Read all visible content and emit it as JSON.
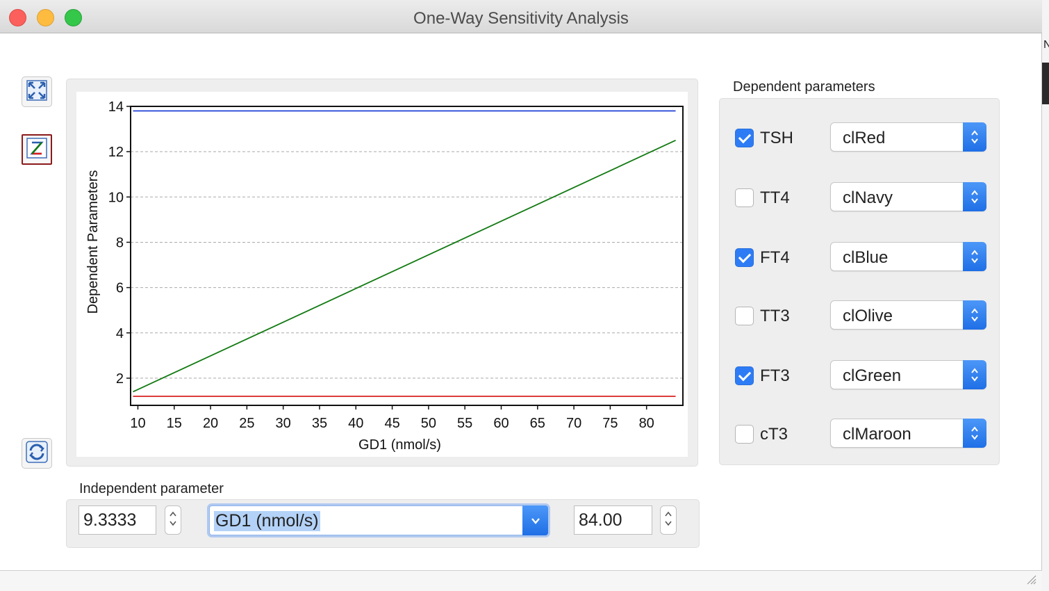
{
  "window": {
    "title": "One-Way Sensitivity Analysis"
  },
  "toolbar": {
    "buttons": [
      {
        "name": "fit-view",
        "icon": "expand-arrows-icon"
      },
      {
        "name": "zoom",
        "icon": "zoom-z-icon",
        "selected": true
      },
      {
        "name": "refresh",
        "icon": "refresh-icon"
      }
    ]
  },
  "chart_data": {
    "type": "line",
    "title": "",
    "xlabel": "GD1 (nmol/s)",
    "ylabel": "Dependent Parameters",
    "xlim": [
      9,
      85
    ],
    "ylim": [
      0.8,
      14
    ],
    "x_ticks": [
      10,
      15,
      20,
      25,
      30,
      35,
      40,
      45,
      50,
      55,
      60,
      65,
      70,
      75,
      80
    ],
    "y_ticks": [
      2,
      4,
      6,
      8,
      10,
      12,
      14
    ],
    "grid": "horizontal-dashed",
    "series": [
      {
        "color": "#1f3fd6",
        "x": [
          9.3333,
          84
        ],
        "y": [
          13.8,
          13.8
        ]
      },
      {
        "color": "#127a12",
        "x": [
          9.3333,
          84
        ],
        "y": [
          1.4,
          12.5
        ]
      },
      {
        "color": "#d92020",
        "x": [
          9.3333,
          84
        ],
        "y": [
          1.2,
          1.2
        ]
      }
    ]
  },
  "dependent": {
    "label": "Dependent parameters",
    "params": [
      {
        "name": "TSH",
        "checked": true,
        "color": "clRed"
      },
      {
        "name": "TT4",
        "checked": false,
        "color": "clNavy"
      },
      {
        "name": "FT4",
        "checked": true,
        "color": "clBlue"
      },
      {
        "name": "TT3",
        "checked": false,
        "color": "clOlive"
      },
      {
        "name": "FT3",
        "checked": true,
        "color": "clGreen"
      },
      {
        "name": "cT3",
        "checked": false,
        "color": "clMaroon"
      }
    ]
  },
  "independent": {
    "label": "Independent parameter",
    "min": "9.3333",
    "parameter": "GD1 (nmol/s)",
    "max": "84.00"
  },
  "side_strip": {
    "letter": "N"
  }
}
